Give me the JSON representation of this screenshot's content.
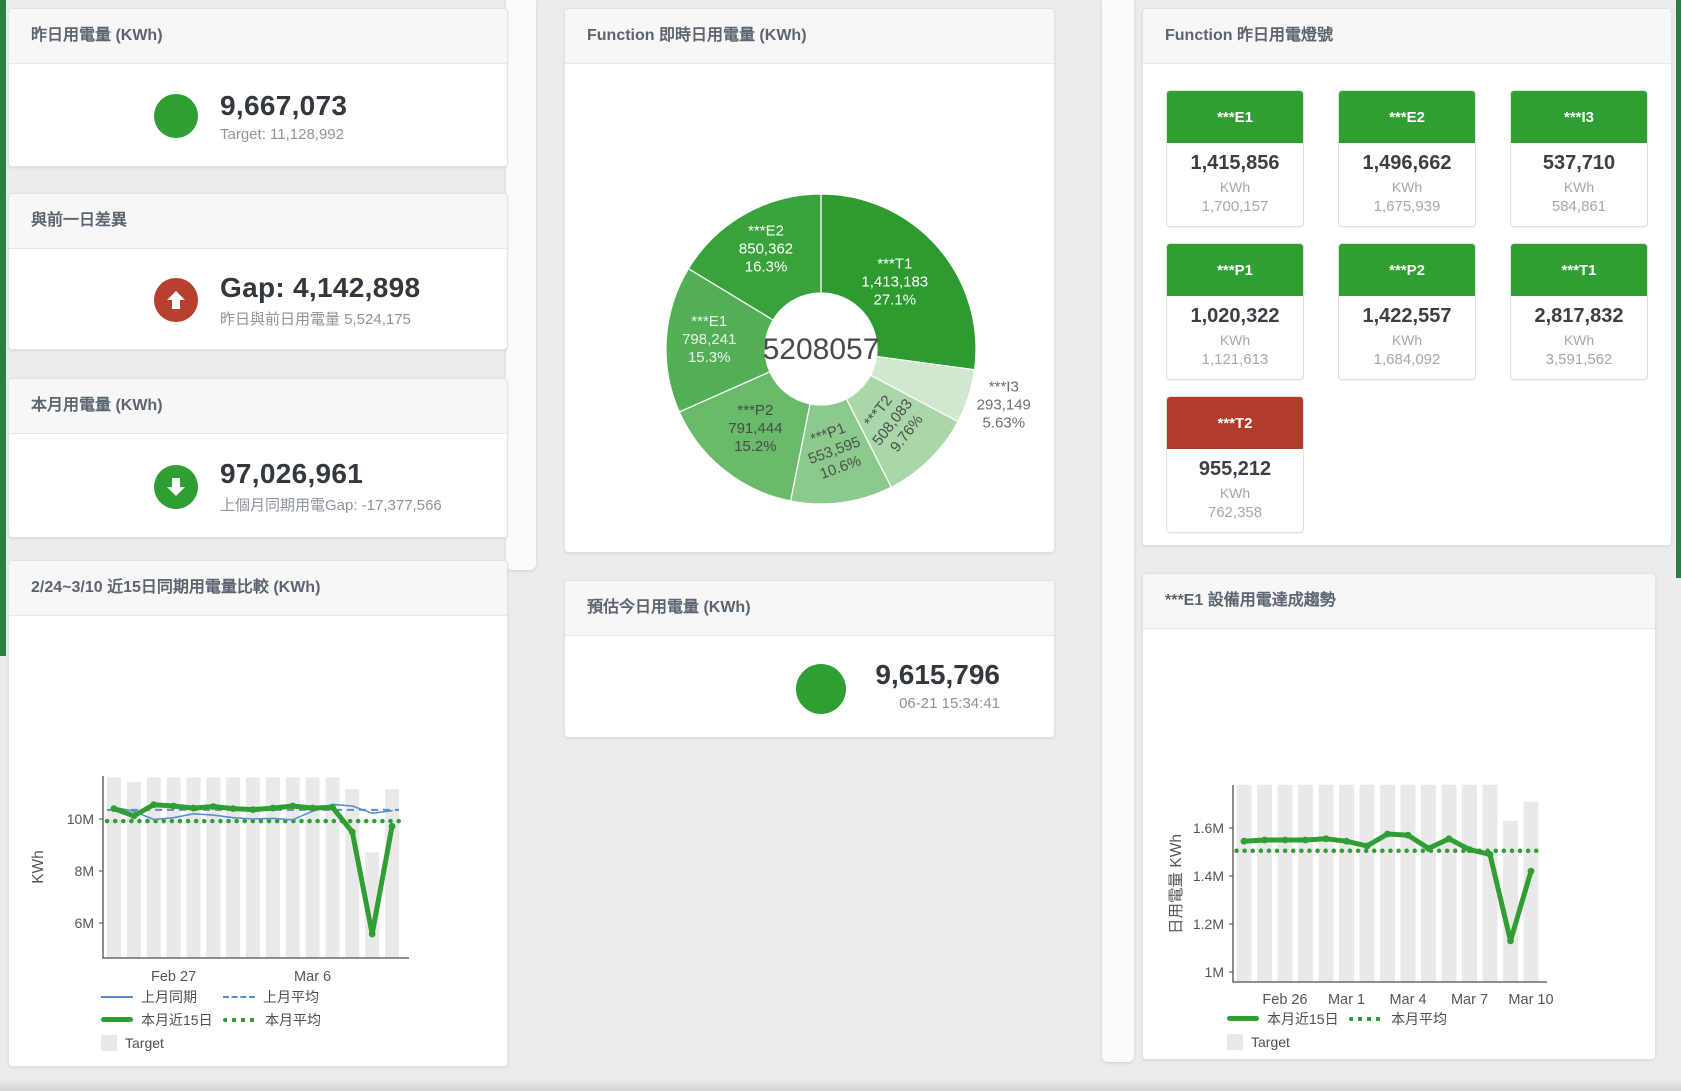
{
  "page": {
    "bg": "#ececec",
    "edge_color": "#2e7d44",
    "accent_green": "#2f9e33",
    "accent_red": "#b8402e"
  },
  "cards": {
    "yesterday": {
      "title": "昨日用電量 (KWh)",
      "value": "9,667,073",
      "sub": "Target: 11,128,992",
      "icon_color": "#2f9e33"
    },
    "gap": {
      "title": "與前一日差異",
      "value": "Gap: 4,142,898",
      "sub": "昨日與前日用電量 5,524,175",
      "icon_color": "#b8402e",
      "direction": "up"
    },
    "month": {
      "title": "本月用電量 (KWh)",
      "value": "97,026,961",
      "sub": "上個月同期用電Gap: -17,377,566",
      "icon_color": "#2f9e33",
      "direction": "down"
    },
    "compare": {
      "title": "2/24~3/10 近15日同期用電量比較 (KWh)"
    },
    "donut": {
      "title": "Function 即時日用電量 (KWh)"
    },
    "today": {
      "title": "預估今日用電量 (KWh)",
      "value": "9,615,796",
      "timestamp": "06-21 15:34:41",
      "icon_color": "#2f9e33"
    },
    "lights": {
      "title": "Function 昨日用電燈號",
      "unit": "KWh",
      "tiles": [
        {
          "name": "***E1",
          "value": "1,415,856",
          "target": "1,700,157",
          "status_color": "#2f9e33"
        },
        {
          "name": "***E2",
          "value": "1,496,662",
          "target": "1,675,939",
          "status_color": "#2f9e33"
        },
        {
          "name": "***I3",
          "value": "537,710",
          "target": "584,861",
          "status_color": "#2f9e33"
        },
        {
          "name": "***P1",
          "value": "1,020,322",
          "target": "1,121,613",
          "status_color": "#2f9e33"
        },
        {
          "name": "***P2",
          "value": "1,422,557",
          "target": "1,684,092",
          "status_color": "#2f9e33"
        },
        {
          "name": "***T1",
          "value": "2,817,832",
          "target": "3,591,562",
          "status_color": "#2f9e33"
        },
        {
          "name": "***T2",
          "value": "955,212",
          "target": "762,358",
          "status_color": "#b23c2b"
        }
      ]
    },
    "trend": {
      "title": "***E1 設備用電達成趨勢"
    }
  },
  "chart_data": [
    {
      "type": "pie",
      "title": "Function 即時日用電量 (KWh)",
      "center_total": "5208057",
      "slices": [
        {
          "label": "***T1",
          "value": 1413183,
          "display": "1,413,183",
          "pct": "27.1%",
          "color": "#2d9b30",
          "label_color": "#ffffff"
        },
        {
          "label": "***I3",
          "value": 293149,
          "display": "293,149",
          "pct": "5.63%",
          "color": "#cfe8cf",
          "label_color": "#6a6f75"
        },
        {
          "label": "***T2",
          "value": 508083,
          "display": "508,083",
          "pct": "9.76%",
          "color": "#a9d7a9",
          "label_color": "#4a4f4a"
        },
        {
          "label": "***P1",
          "value": 553595,
          "display": "553,595",
          "pct": "10.6%",
          "color": "#8bca8c",
          "label_color": "#4a4f4a"
        },
        {
          "label": "***P2",
          "value": 791444,
          "display": "791,444",
          "pct": "15.2%",
          "color": "#69ba6a",
          "label_color": "#474c47"
        },
        {
          "label": "***E1",
          "value": 798241,
          "display": "798,241",
          "pct": "15.3%",
          "color": "#53af55",
          "label_color": "#ecf4ec"
        },
        {
          "label": "***E2",
          "value": 850362,
          "display": "850,362",
          "pct": "16.3%",
          "color": "#3aa23d",
          "label_color": "#ffffff"
        }
      ]
    },
    {
      "type": "line",
      "title": "2/24~3/10 近15日同期用電量比較 (KWh)",
      "ylabel": "KWh",
      "values_unit": "millions KWh",
      "ylim": [
        4.65,
        11.65
      ],
      "grid": false,
      "legend_position": "bottom",
      "yticks": [
        {
          "v": 6,
          "label": "6M"
        },
        {
          "v": 8,
          "label": "8M"
        },
        {
          "v": 10,
          "label": "10M"
        }
      ],
      "xticks": [
        {
          "i": 3,
          "label": "Feb 27"
        },
        {
          "i": 10,
          "label": "Mar 6"
        }
      ],
      "series": [
        {
          "name": "上月同期",
          "kind": "line",
          "color": "#5b8fc9",
          "width": 1.6,
          "values": [
            10.45,
            10.3,
            9.98,
            10.05,
            10.2,
            10.15,
            10.05,
            10.0,
            10.02,
            9.97,
            10.3,
            10.56,
            10.5,
            10.22,
            10.32
          ]
        },
        {
          "name": "上月平均",
          "kind": "avg-dashed",
          "color": "#5b8fc9",
          "value": 10.35
        },
        {
          "name": "本月近15日",
          "kind": "line",
          "color": "#2f9e33",
          "width": 5,
          "markers": true,
          "values": [
            10.4,
            10.12,
            10.55,
            10.5,
            10.42,
            10.48,
            10.4,
            10.36,
            10.42,
            10.5,
            10.42,
            10.45,
            9.5,
            5.58,
            9.72
          ]
        },
        {
          "name": "本月平均",
          "kind": "avg-dotted",
          "color": "#2f9e33",
          "value": 9.92
        },
        {
          "name": "Target",
          "kind": "bar",
          "color": "#e9e9e9",
          "values": [
            11.6,
            11.42,
            11.6,
            11.6,
            11.6,
            11.6,
            11.6,
            11.6,
            11.6,
            11.6,
            11.6,
            11.6,
            11.15,
            8.72,
            11.15
          ]
        }
      ],
      "legend_rows": [
        [
          0,
          1
        ],
        [
          2,
          3
        ],
        [
          4
        ]
      ]
    },
    {
      "type": "line",
      "title": "***E1 設備用電達成趨勢",
      "ylabel": "日用電量 KWh",
      "values_unit": "millions KWh",
      "ylim": [
        0.96,
        1.78
      ],
      "grid": false,
      "legend_position": "bottom",
      "yticks": [
        {
          "v": 1,
          "label": "1M"
        },
        {
          "v": 1.2,
          "label": "1.2M"
        },
        {
          "v": 1.4,
          "label": "1.4M"
        },
        {
          "v": 1.6,
          "label": "1.6M"
        }
      ],
      "xticks": [
        {
          "i": 2,
          "label": "Feb 26"
        },
        {
          "i": 5,
          "label": "Mar 1"
        },
        {
          "i": 8,
          "label": "Mar 4"
        },
        {
          "i": 11,
          "label": "Mar 7"
        },
        {
          "i": 14,
          "label": "Mar 10"
        }
      ],
      "series": [
        {
          "name": "本月近15日",
          "kind": "line",
          "color": "#2f9e33",
          "width": 5,
          "markers": true,
          "values": [
            1.545,
            1.55,
            1.55,
            1.55,
            1.555,
            1.545,
            1.525,
            1.575,
            1.57,
            1.515,
            1.555,
            1.51,
            1.49,
            1.13,
            1.42
          ]
        },
        {
          "name": "本月平均",
          "kind": "avg-dotted",
          "color": "#2f9e33",
          "value": 1.505
        },
        {
          "name": "Target",
          "kind": "bar",
          "color": "#e9e9e9",
          "values": [
            1.78,
            1.78,
            1.78,
            1.78,
            1.78,
            1.78,
            1.78,
            1.78,
            1.78,
            1.78,
            1.78,
            1.78,
            1.78,
            1.63,
            1.71
          ]
        }
      ],
      "legend_rows": [
        [
          0,
          1
        ],
        [
          2
        ]
      ]
    }
  ]
}
